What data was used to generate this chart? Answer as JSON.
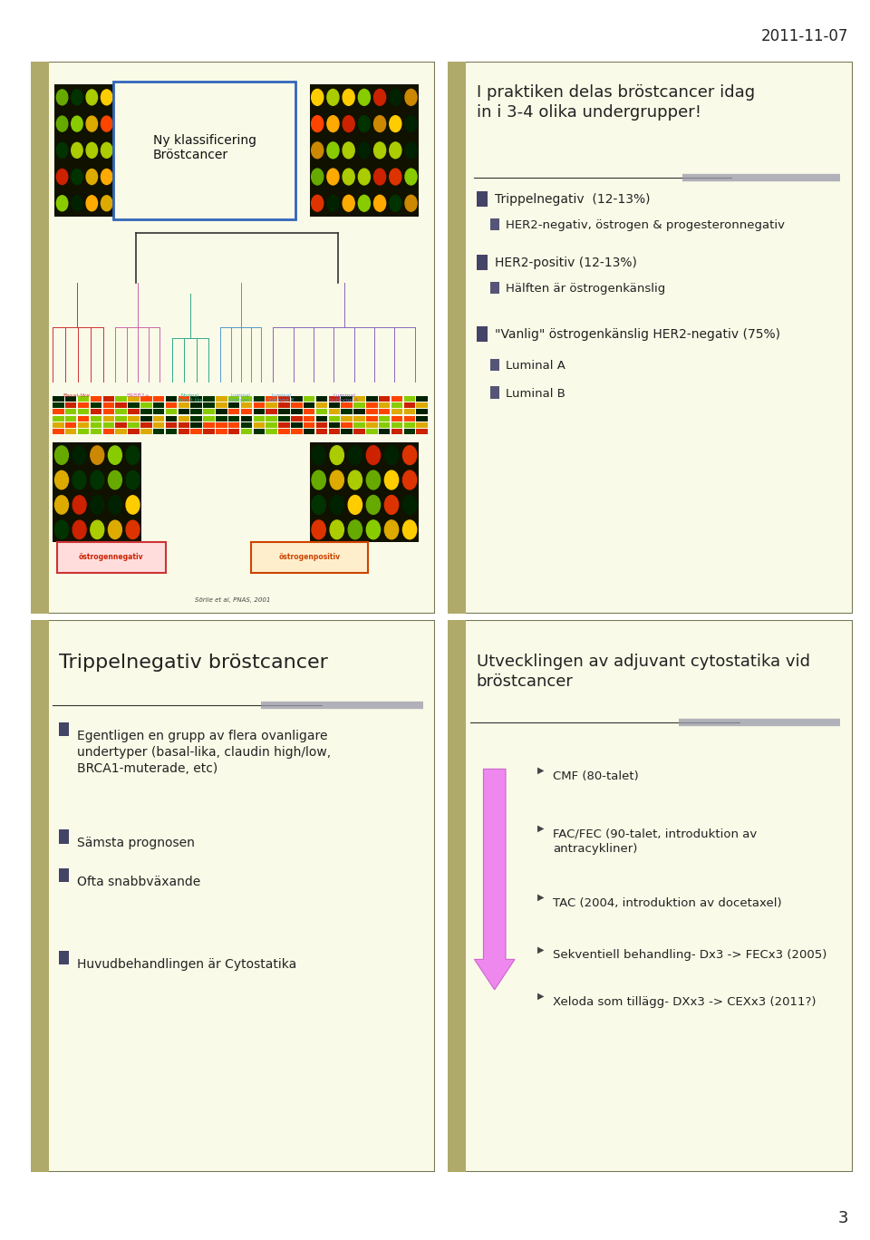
{
  "bg_color": "#ffffff",
  "panel_bg": "#fafae8",
  "date_text": "2011-11-07",
  "page_number": "3",
  "top_left_title": "Ny klassificering\nBröstcancer",
  "top_left_subtitle": "Sörlie et al, PNAS, 2001",
  "top_right_title": "I praktiken delas bröstcancer idag\nin i 3-4 olika undergrupper!",
  "top_right_bullets": [
    {
      "level": 1,
      "text": "Trippelnegativ  (12-13%)"
    },
    {
      "level": 2,
      "text": "HER2-negativ, östrogen & progesteronnegativ"
    },
    {
      "level": 1,
      "text": "HER2-positiv (12-13%)"
    },
    {
      "level": 2,
      "text": "Hälften är östrogenkänslig"
    },
    {
      "level": 1,
      "text": "\"Vanlig\" östrogenkänslig HER2-negativ (75%)"
    },
    {
      "level": 2,
      "text": "Luminal A"
    },
    {
      "level": 2,
      "text": "Luminal B"
    }
  ],
  "bot_left_title": "Trippelnegativ bröstcancer",
  "bot_left_bullets": [
    {
      "indent": 0,
      "text": "Egentligen en grupp av flera ovanligare\nundertyper (basal-lika, claudin high/low,\nBRCA1-muterade, etc)"
    },
    {
      "indent": 0,
      "text": "Sämsta prognosen"
    },
    {
      "indent": 0,
      "text": "Ofta snabbväxande"
    },
    {
      "indent": -1,
      "text": ""
    },
    {
      "indent": 0,
      "text": "Huvudbehandlingen är Cytostatika"
    }
  ],
  "bot_right_title": "Utvecklingen av adjuvant cytostatika vid\nbröstcancer",
  "bot_right_bullets": [
    {
      "text": "CMF (80-talet)"
    },
    {
      "text": "FAC/FEC (90-talet, introduktion av\nantracykliner)"
    },
    {
      "text": "TAC (2004, introduktion av docetaxel)"
    },
    {
      "text": "Sekventiell behandling- Dx3 -> FECx3 (2005)"
    },
    {
      "text": "Xeloda som tillägg- DXx3 -> CEXx3 (2011?)"
    }
  ],
  "arrow_color": "#ee88ee"
}
